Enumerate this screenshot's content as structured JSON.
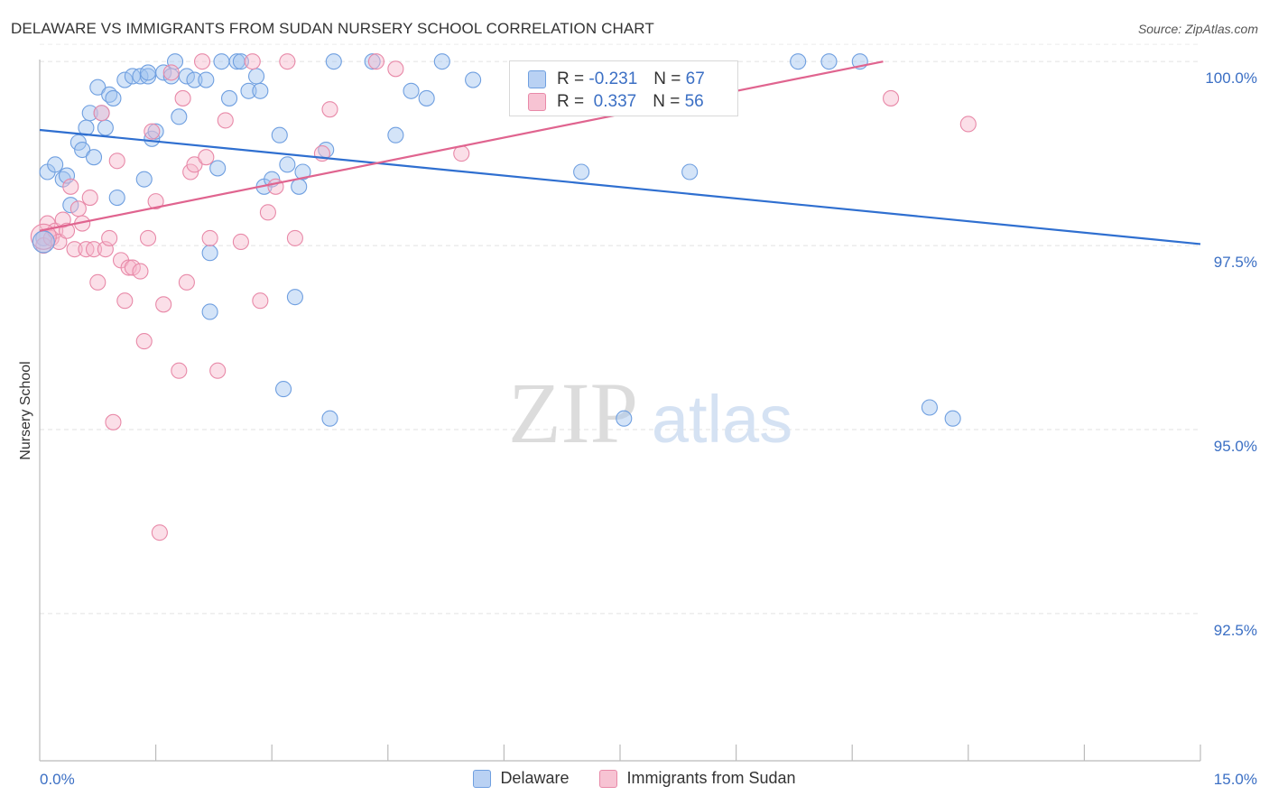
{
  "title": "DELAWARE VS IMMIGRANTS FROM SUDAN NURSERY SCHOOL CORRELATION CHART",
  "source": "Source: ZipAtlas.com",
  "watermark": {
    "zip": "ZIP",
    "atlas": "atlas"
  },
  "legend": {
    "r_label": "R =",
    "n_label": "N =",
    "series": [
      {
        "name": "Delaware",
        "r": "-0.231",
        "n": "67",
        "color": "#6f9fe0",
        "fill": "#b9d1f3"
      },
      {
        "name": "Immigrants from Sudan",
        "r": "0.337",
        "n": "56",
        "color": "#e889a8",
        "fill": "#f7c3d3"
      }
    ]
  },
  "chart_data": {
    "type": "scatter",
    "title": "DELAWARE VS IMMIGRANTS FROM SUDAN NURSERY SCHOOL CORRELATION CHART",
    "xlabel": "",
    "ylabel": "Nursery School",
    "xlim": [
      0,
      15
    ],
    "ylim": [
      90.5,
      100.1
    ],
    "x_ticks": [
      "0.0%",
      "15.0%"
    ],
    "y_ticks": [
      {
        "value": 100.0,
        "label": "100.0%"
      },
      {
        "value": 97.5,
        "label": "97.5%"
      },
      {
        "value": 95.0,
        "label": "95.0%"
      },
      {
        "value": 92.5,
        "label": "92.5%"
      }
    ],
    "series": [
      {
        "name": "Delaware",
        "color": "#6f9fe0",
        "trend": {
          "x": [
            0,
            15
          ],
          "y": [
            99.07,
            97.52
          ]
        },
        "points": [
          [
            0.1,
            98.5
          ],
          [
            0.2,
            98.6
          ],
          [
            0.3,
            98.4
          ],
          [
            0.35,
            98.45
          ],
          [
            0.4,
            98.05
          ],
          [
            0.5,
            98.9
          ],
          [
            0.55,
            98.8
          ],
          [
            0.6,
            99.1
          ],
          [
            0.65,
            99.3
          ],
          [
            0.7,
            98.7
          ],
          [
            0.75,
            99.65
          ],
          [
            0.8,
            99.3
          ],
          [
            0.85,
            99.1
          ],
          [
            0.9,
            99.55
          ],
          [
            0.95,
            99.5
          ],
          [
            1.0,
            98.15
          ],
          [
            1.1,
            99.75
          ],
          [
            1.2,
            99.8
          ],
          [
            1.3,
            99.8
          ],
          [
            1.35,
            98.4
          ],
          [
            1.4,
            99.8
          ],
          [
            1.45,
            98.95
          ],
          [
            1.5,
            99.05
          ],
          [
            1.6,
            99.85
          ],
          [
            1.7,
            99.8
          ],
          [
            1.8,
            99.25
          ],
          [
            1.9,
            99.8
          ],
          [
            2.0,
            99.75
          ],
          [
            2.15,
            99.75
          ],
          [
            2.2,
            97.4
          ],
          [
            2.3,
            98.55
          ],
          [
            2.35,
            100.0
          ],
          [
            2.45,
            99.5
          ],
          [
            2.55,
            100.0
          ],
          [
            2.6,
            100.0
          ],
          [
            2.7,
            99.6
          ],
          [
            2.8,
            99.8
          ],
          [
            2.85,
            99.6
          ],
          [
            2.9,
            98.3
          ],
          [
            3.0,
            98.4
          ],
          [
            3.1,
            99.0
          ],
          [
            3.2,
            98.6
          ],
          [
            3.3,
            96.8
          ],
          [
            3.35,
            98.3
          ],
          [
            3.4,
            98.5
          ],
          [
            3.7,
            98.8
          ],
          [
            3.8,
            100.0
          ],
          [
            4.3,
            100.0
          ],
          [
            4.6,
            99.0
          ],
          [
            4.8,
            99.6
          ],
          [
            5.0,
            99.5
          ],
          [
            5.2,
            100.0
          ],
          [
            5.6,
            99.75
          ],
          [
            7.0,
            98.5
          ],
          [
            8.4,
            98.5
          ],
          [
            9.8,
            100.0
          ],
          [
            10.2,
            100.0
          ],
          [
            10.6,
            100.0
          ],
          [
            11.5,
            95.3
          ],
          [
            11.8,
            95.15
          ],
          [
            3.15,
            95.55
          ],
          [
            3.75,
            95.15
          ],
          [
            7.55,
            95.15
          ],
          [
            2.2,
            96.6
          ],
          [
            1.4,
            99.85
          ],
          [
            0.05,
            97.6
          ],
          [
            1.75,
            100.0
          ]
        ]
      },
      {
        "name": "Immigrants from Sudan",
        "color": "#e889a8",
        "trend": {
          "x": [
            0,
            10.9
          ],
          "y": [
            97.7,
            100.0
          ]
        },
        "points": [
          [
            0.05,
            97.5
          ],
          [
            0.1,
            97.8
          ],
          [
            0.15,
            97.6
          ],
          [
            0.2,
            97.7
          ],
          [
            0.25,
            97.55
          ],
          [
            0.3,
            97.85
          ],
          [
            0.35,
            97.7
          ],
          [
            0.4,
            98.3
          ],
          [
            0.45,
            97.45
          ],
          [
            0.5,
            98.0
          ],
          [
            0.55,
            97.8
          ],
          [
            0.6,
            97.45
          ],
          [
            0.65,
            98.15
          ],
          [
            0.7,
            97.45
          ],
          [
            0.75,
            97.0
          ],
          [
            0.8,
            99.3
          ],
          [
            0.85,
            97.45
          ],
          [
            0.9,
            97.6
          ],
          [
            0.95,
            95.1
          ],
          [
            1.0,
            98.65
          ],
          [
            1.05,
            97.3
          ],
          [
            1.1,
            96.75
          ],
          [
            1.15,
            97.2
          ],
          [
            1.2,
            97.2
          ],
          [
            1.3,
            97.15
          ],
          [
            1.35,
            96.2
          ],
          [
            1.4,
            97.6
          ],
          [
            1.45,
            99.05
          ],
          [
            1.5,
            98.1
          ],
          [
            1.55,
            93.6
          ],
          [
            1.6,
            96.7
          ],
          [
            1.7,
            99.85
          ],
          [
            1.8,
            95.8
          ],
          [
            1.85,
            99.5
          ],
          [
            1.9,
            97.0
          ],
          [
            1.95,
            98.5
          ],
          [
            2.0,
            98.6
          ],
          [
            2.1,
            100.0
          ],
          [
            2.15,
            98.7
          ],
          [
            2.2,
            97.6
          ],
          [
            2.3,
            95.8
          ],
          [
            2.4,
            99.2
          ],
          [
            2.6,
            97.55
          ],
          [
            2.75,
            100.0
          ],
          [
            2.85,
            96.75
          ],
          [
            2.95,
            97.95
          ],
          [
            3.05,
            98.3
          ],
          [
            3.2,
            100.0
          ],
          [
            3.3,
            97.6
          ],
          [
            3.65,
            98.75
          ],
          [
            3.75,
            99.35
          ],
          [
            4.35,
            100.0
          ],
          [
            4.6,
            99.9
          ],
          [
            5.45,
            98.75
          ],
          [
            11.0,
            99.5
          ],
          [
            12.0,
            99.15
          ]
        ]
      }
    ]
  }
}
